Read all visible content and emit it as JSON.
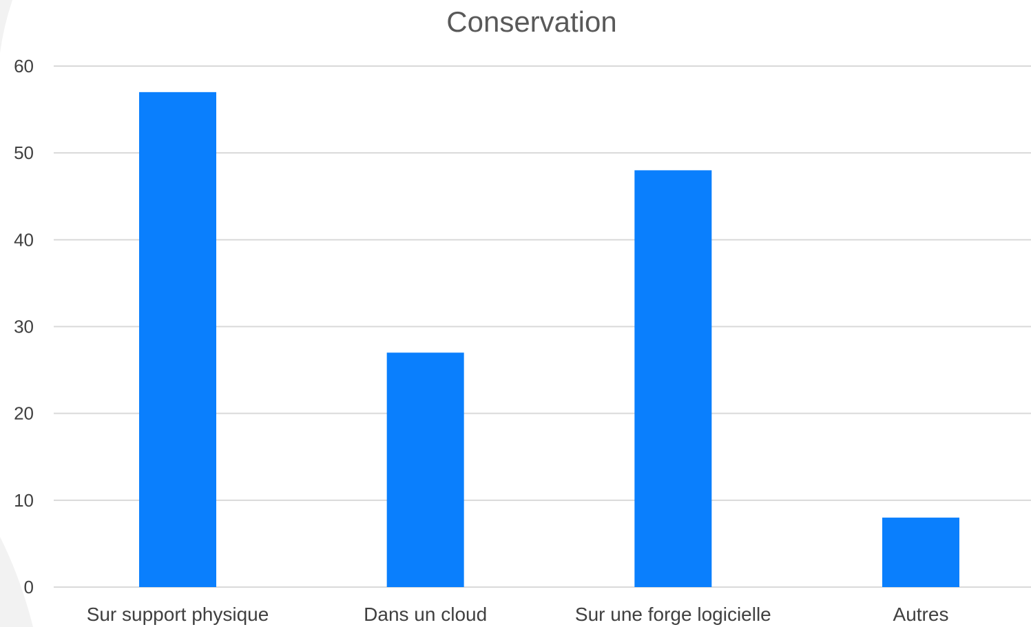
{
  "chart_data": {
    "type": "bar",
    "title": "Conservation",
    "categories": [
      "Sur support physique",
      "Dans un cloud",
      "Sur une forge logicielle",
      "Autres"
    ],
    "values": [
      57,
      27,
      48,
      8
    ],
    "ylim": [
      0,
      60
    ],
    "yticks": [
      0,
      10,
      20,
      30,
      40,
      50,
      60
    ],
    "xlabel": "",
    "ylabel": "",
    "grid": true,
    "legend": "none",
    "colors": {
      "bar": "#0a7ffd",
      "grid": "#d9d9d9",
      "background": "#ffffff",
      "decor": "#f2f2f2"
    }
  }
}
